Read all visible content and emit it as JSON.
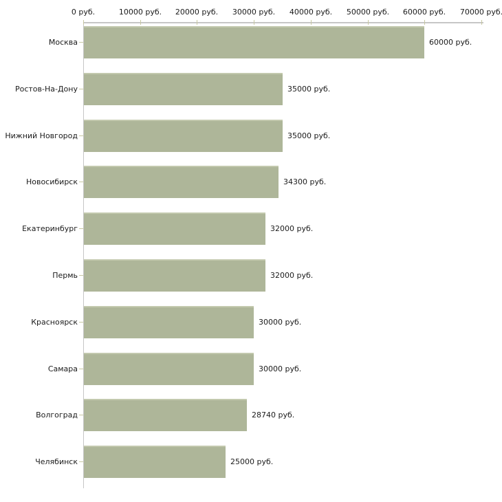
{
  "chart_data": {
    "type": "bar",
    "orientation": "horizontal",
    "title": "",
    "unit": "руб.",
    "categories": [
      "Москва",
      "Ростов-На-Дону",
      "Нижний Новгород",
      "Новосибирск",
      "Екатеринбург",
      "Пермь",
      "Красноярск",
      "Самара",
      "Волгоград",
      "Челябинск"
    ],
    "values": [
      60000,
      35000,
      35000,
      34300,
      32000,
      32000,
      30000,
      30000,
      28740,
      25000
    ],
    "value_labels": [
      "60000 руб.",
      "35000 руб.",
      "35000 руб.",
      "34300 руб.",
      "32000 руб.",
      "32000 руб.",
      "30000 руб.",
      "30000 руб.",
      "28740 руб.",
      "25000 руб."
    ],
    "x_tick_values": [
      0,
      10000,
      20000,
      30000,
      40000,
      50000,
      60000,
      70000
    ],
    "x_tick_labels": [
      "0 руб.",
      "10000 руб.",
      "20000 руб.",
      "30000 руб.",
      "40000 руб.",
      "50000 руб.",
      "60000 руб.",
      "70000 руб."
    ],
    "xlim": [
      0,
      70000
    ],
    "grid": false,
    "legend_position": "none",
    "colors": {
      "bar": "#aeb699",
      "bar_top_edge": "#c3c9ae",
      "axis_line": "#c6c6c6",
      "tick": "#c8c8a2",
      "text": "#1a1a1a",
      "background": "#ffffff"
    }
  }
}
